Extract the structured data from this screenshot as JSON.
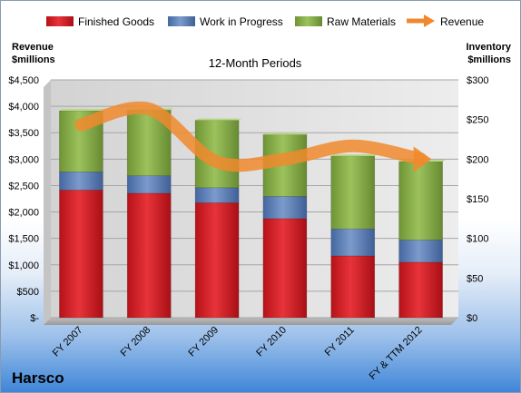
{
  "company": "Harsco",
  "chart_data": {
    "type": "bar",
    "stacked": true,
    "title": "12-Month Periods",
    "ylabel": "Revenue $millions",
    "ylabel_lines": [
      "Revenue",
      "$millions"
    ],
    "y2label": "Inventory $millions",
    "y2label_lines": [
      "Inventory",
      "$millions"
    ],
    "categories": [
      "FY 2007",
      "FY 2008",
      "FY 2009",
      "FY 2010",
      "FY 2011",
      "FY & TTM 2012"
    ],
    "ylim": [
      0,
      4500
    ],
    "y_ticks": [
      0,
      500,
      1000,
      1500,
      2000,
      2500,
      3000,
      3500,
      4000,
      4500
    ],
    "y_tick_labels": [
      "$-",
      "$500",
      "$1,000",
      "$1,500",
      "$2,000",
      "$2,500",
      "$3,000",
      "$3,500",
      "$4,000",
      "$4,500"
    ],
    "y2lim": [
      0,
      300
    ],
    "y2_ticks": [
      0,
      50,
      100,
      150,
      200,
      250,
      300
    ],
    "y2_tick_labels": [
      "$0",
      "$50",
      "$100",
      "$150",
      "$200",
      "$250",
      "$300"
    ],
    "grid": true,
    "legend_position": "top",
    "series": [
      {
        "name": "Finished Goods",
        "axis": "right",
        "color": "#d42128",
        "values": [
          161,
          157,
          145,
          125,
          78,
          70
        ]
      },
      {
        "name": "Work in Progress",
        "axis": "right",
        "color": "#5b7fb8",
        "values": [
          23,
          22,
          19,
          28,
          34,
          28
        ]
      },
      {
        "name": "Raw Materials",
        "axis": "right",
        "color": "#86ad48",
        "values": [
          77,
          83,
          85,
          78,
          92,
          99
        ]
      },
      {
        "name": "Revenue",
        "axis": "left",
        "type": "line",
        "color": "#f0892e",
        "values": [
          3650,
          3950,
          2950,
          3000,
          3250,
          3000
        ]
      }
    ]
  }
}
